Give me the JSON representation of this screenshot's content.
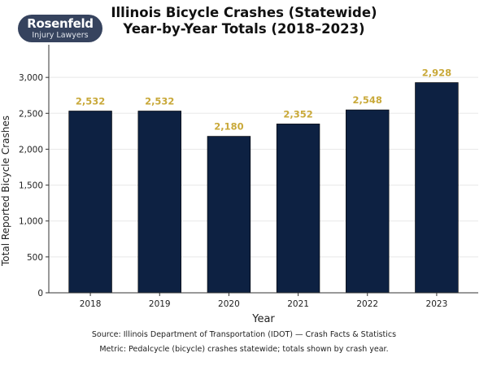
{
  "logo": {
    "line1": "Rosenfeld",
    "line2": "Injury Lawyers"
  },
  "chart_data": {
    "type": "bar",
    "title": "Illinois Bicycle Crashes (Statewide)\nYear-by-Year Totals (2018–2023)",
    "title_lines": [
      "Illinois Bicycle Crashes (Statewide)",
      "Year-by-Year Totals (2018–2023)"
    ],
    "categories": [
      "2018",
      "2019",
      "2020",
      "2021",
      "2022",
      "2023"
    ],
    "values": [
      2532,
      2532,
      2180,
      2352,
      2548,
      2928
    ],
    "data_labels": [
      "2,532",
      "2,532",
      "2,180",
      "2,352",
      "2,548",
      "2,928"
    ],
    "xlabel": "Year",
    "ylabel": "Total Reported Bicycle Crashes",
    "ylim": [
      0,
      3455
    ],
    "yticks": [
      0,
      500,
      1000,
      1500,
      2000,
      2500,
      3000
    ],
    "ytick_labels": [
      "0",
      "500",
      "1,000",
      "1,500",
      "2,000",
      "2,500",
      "3,000"
    ],
    "grid": "horizontal",
    "legend": "none",
    "colors": {
      "bar": "#0d2142",
      "label": "#c9a93a",
      "grid": "#e8e8e8"
    }
  },
  "footer": {
    "source": "Source: Illinois Department of Transportation (IDOT) — Crash Facts & Statistics",
    "metric": "Metric: Pedalcycle (bicycle) crashes statewide; totals shown by crash year."
  }
}
